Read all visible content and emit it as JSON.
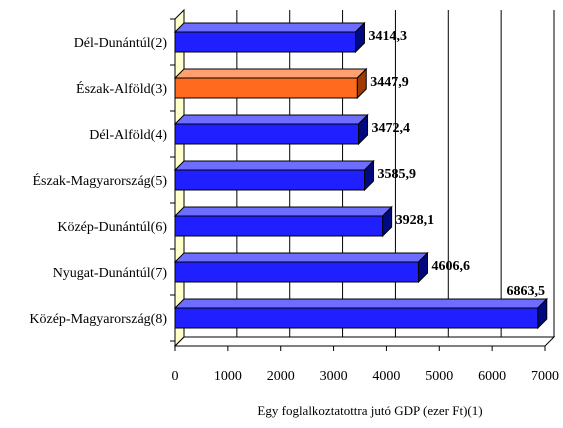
{
  "chart_data": {
    "type": "bar",
    "orientation": "horizontal",
    "categories": [
      "Dél-Dunántúl(2)",
      "Észak-Alföld(3)",
      "Dél-Alföld(4)",
      "Észak-Magyarország(5)",
      "Közép-Dunántúl(6)",
      "Nyugat-Dunántúl(7)",
      "Közép-Magyarország(8)"
    ],
    "values": [
      3414.3,
      3447.9,
      3472.4,
      3585.9,
      3928.1,
      4606.6,
      6863.5
    ],
    "value_labels": [
      "3414,3",
      "3447,9",
      "3472,4",
      "3585,9",
      "3928,1",
      "4606,6",
      "6863,5"
    ],
    "highlight_index": 1,
    "colors": {
      "bar": "#1f1fff",
      "bar_top": "#6d6dff",
      "bar_side": "#000a80",
      "highlight": "#ff6a1f",
      "highlight_top": "#ffa070",
      "highlight_side": "#a03a00",
      "wall": "#ffffcc",
      "grid": "#000000"
    },
    "xlim": [
      0,
      7000
    ],
    "x_ticks": [
      "0",
      "1000",
      "2000",
      "3000",
      "4000",
      "5000",
      "6000",
      "7000"
    ],
    "xlabel": "Egy foglalkoztatottra jutó GDP (ezer Ft)(1)",
    "ylabel": "",
    "title": "",
    "grid": true,
    "legend": "none"
  }
}
